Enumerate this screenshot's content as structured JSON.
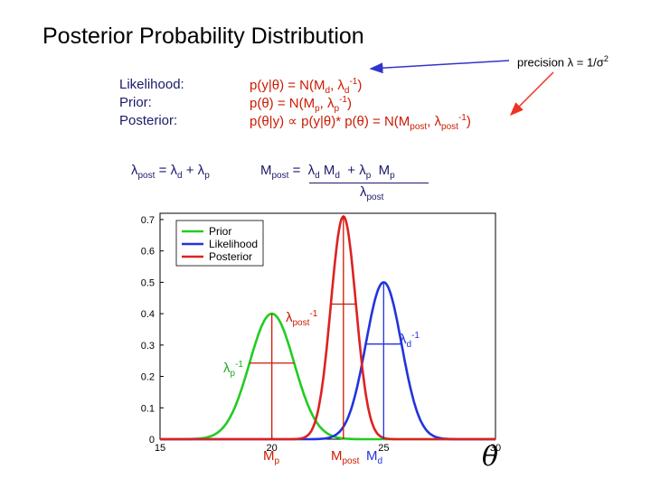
{
  "slide": {
    "title": "Posterior Probability Distribution",
    "precision_note": "precision λ = 1/σ²",
    "labels": {
      "likelihood": "Likelihood:",
      "prior": "Prior:",
      "posterior": "Posterior:"
    },
    "formulas": {
      "likelihood": "p(y|θ) = N(Md, λd⁻¹)",
      "prior": "p(θ) = N(Mp, λp⁻¹)",
      "posterior": "p(θ|y) ∝ p(y|θ)* p(θ) = N(Mpost, λpost⁻¹)"
    },
    "lambda_post_eq": "λpost = λd + λp",
    "m_post_eq": "Mpost = λd Md + λp Mp",
    "m_post_denominator": "λpost"
  },
  "chart_data": {
    "type": "line",
    "x_ticks": [
      15,
      20,
      25,
      30
    ],
    "y_ticks": [
      0,
      0.1,
      0.2,
      0.3,
      0.4,
      0.5,
      0.6,
      0.7
    ],
    "xlim": [
      15,
      30
    ],
    "ylim": [
      0,
      0.72
    ],
    "series": [
      {
        "name": "Prior",
        "color": "#22cc22",
        "mean": 20,
        "sd": 1.0,
        "peak": 0.4
      },
      {
        "name": "Likelihood",
        "color": "#2233dd",
        "mean": 25,
        "sd": 0.8,
        "peak": 0.5
      },
      {
        "name": "Posterior",
        "color": "#dd2222",
        "mean": 23.2,
        "sd": 0.56,
        "peak": 0.71
      }
    ],
    "annotations": {
      "lambda_post": "λpost⁻¹",
      "lambda_d": "λd⁻¹",
      "lambda_p": "λp⁻¹",
      "m_p": "Mp",
      "m_post": "Mpost",
      "m_d": "Md"
    },
    "x_axis_symbol": "θ"
  },
  "colors": {
    "navy": "#1a1a6a",
    "red": "#cc1a00",
    "arrow_blue": "#3333cc",
    "arrow_red": "#ee3322"
  }
}
